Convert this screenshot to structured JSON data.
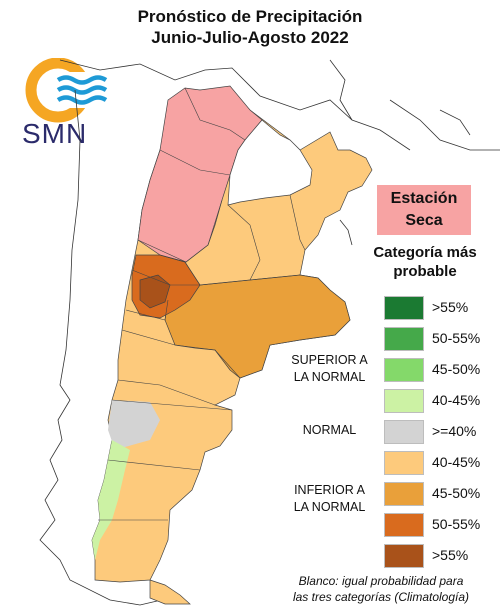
{
  "title": {
    "line1": "Pronóstico de Precipitación",
    "line2": "Junio-Julio-Agosto 2022"
  },
  "logo": {
    "text": "SMN"
  },
  "season": {
    "line1": "Estación",
    "line2": "Seca"
  },
  "legend": {
    "title_line1": "Categoría más",
    "title_line2": "probable",
    "items": [
      {
        "label": ">55%",
        "color": "#1b7a32"
      },
      {
        "label": "50-55%",
        "color": "#45a94a"
      },
      {
        "label": "45-50%",
        "color": "#84d96a"
      },
      {
        "label": "40-45%",
        "color": "#ccf2a4"
      },
      {
        "label": ">=40%",
        "color": "#d3d3d3"
      },
      {
        "label": "40-45%",
        "color": "#fdca7c"
      },
      {
        "label": "45-50%",
        "color": "#e9a03a"
      },
      {
        "label": "50-55%",
        "color": "#d96b1e"
      },
      {
        "label": ">55%",
        "color": "#a9521a"
      }
    ],
    "groups": {
      "superior_line1": "SUPERIOR A",
      "superior_line2": "LA NORMAL",
      "normal": "NORMAL",
      "inferior_line1": "INFERIOR A",
      "inferior_line2": "LA NORMAL"
    },
    "footnote_line1": "Blanco: igual probabilidad para",
    "footnote_line2": "las tres categorías (Climatología)"
  },
  "colors": {
    "dry_season": "#f7a3a3",
    "white_equal": "#ffffff",
    "logo_orange": "#f5a623",
    "logo_blue": "#1e9ad6"
  }
}
